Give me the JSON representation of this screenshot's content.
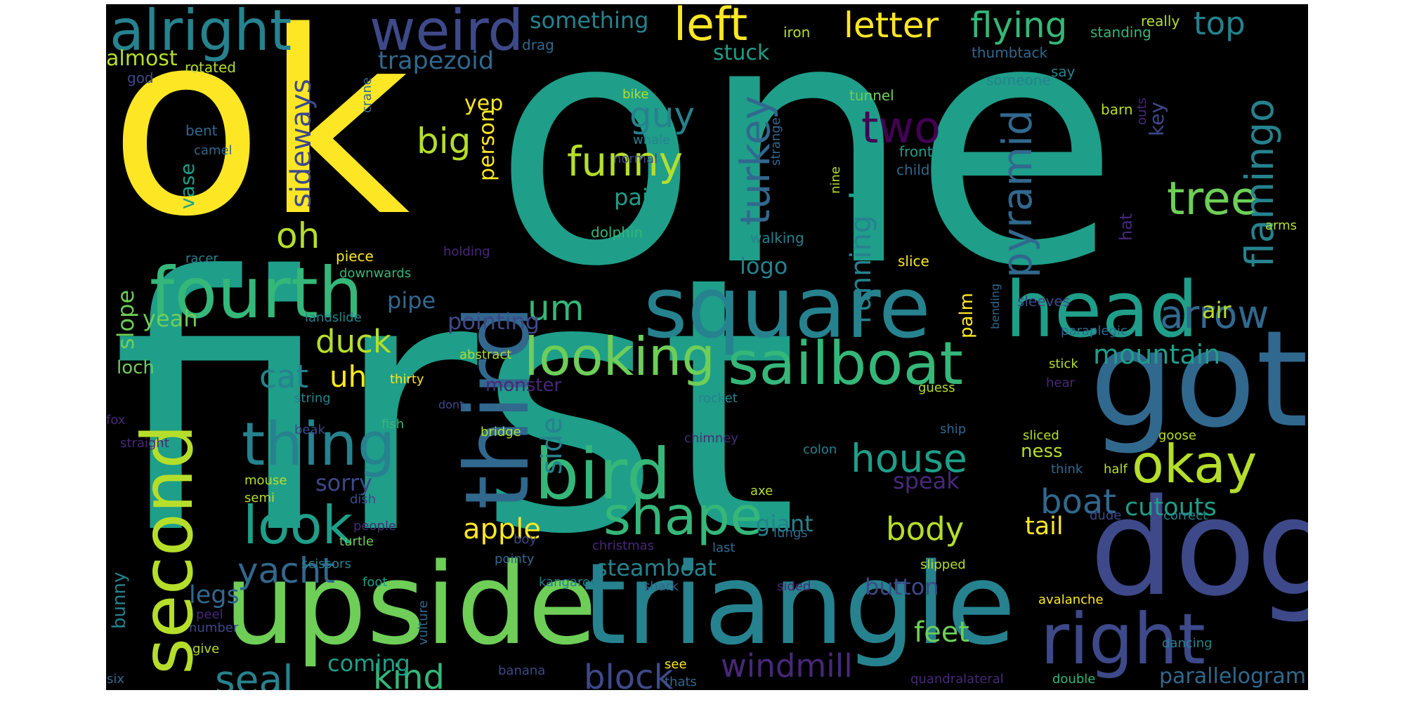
{
  "palette": [
    "#fde725",
    "#b5de2b",
    "#6ece58",
    "#35b779",
    "#1f9e89",
    "#26828e",
    "#31688e",
    "#3e4989",
    "#482878",
    "#440154"
  ],
  "words": [
    {
      "text": "first",
      "c": "#1f9e89"
    },
    {
      "text": "one",
      "c": "#1f9e89"
    },
    {
      "text": "ok",
      "c": "#fde725"
    },
    {
      "text": "upside",
      "c": "#6ece58"
    },
    {
      "text": "triangle",
      "c": "#26828e"
    },
    {
      "text": "got",
      "c": "#31688e"
    },
    {
      "text": "dog",
      "c": "#3e4989"
    },
    {
      "text": "square",
      "c": "#26828e"
    },
    {
      "text": "third",
      "c": "#31688e"
    },
    {
      "text": "head",
      "c": "#1f9e89"
    },
    {
      "text": "fourth",
      "c": "#35b779"
    },
    {
      "text": "second",
      "c": "#b5de2b"
    },
    {
      "text": "right",
      "c": "#3e4989"
    },
    {
      "text": "alright",
      "c": "#26828e"
    },
    {
      "text": "weird",
      "c": "#3e4989"
    },
    {
      "text": "bird",
      "c": "#35b779"
    },
    {
      "text": "thing",
      "c": "#26828e"
    },
    {
      "text": "sailboat",
      "c": "#35b779"
    },
    {
      "text": "looking",
      "c": "#6ece58"
    },
    {
      "text": "shape",
      "c": "#35b779"
    },
    {
      "text": "look",
      "c": "#1f9e89"
    },
    {
      "text": "okay",
      "c": "#b5de2b"
    },
    {
      "text": "tree",
      "c": "#6ece58"
    },
    {
      "text": "left",
      "c": "#fde725"
    },
    {
      "text": "letter",
      "c": "#fde725"
    },
    {
      "text": "flying",
      "c": "#35b779"
    },
    {
      "text": "top",
      "c": "#26828e"
    },
    {
      "text": "funny",
      "c": "#b5de2b"
    },
    {
      "text": "two",
      "c": "#440154"
    },
    {
      "text": "pyramid",
      "c": "#31688e"
    },
    {
      "text": "flamingo",
      "c": "#26828e"
    },
    {
      "text": "turkey",
      "c": "#31688e"
    },
    {
      "text": "house",
      "c": "#1f9e89"
    },
    {
      "text": "arrow",
      "c": "#31688e"
    },
    {
      "text": "cut",
      "c": "#1f9e89"
    },
    {
      "text": "running",
      "c": "#26828e"
    },
    {
      "text": "windmill",
      "c": "#482878"
    },
    {
      "text": "seal",
      "c": "#26828e"
    },
    {
      "text": "kind",
      "c": "#35b779"
    },
    {
      "text": "block",
      "c": "#3e4989"
    },
    {
      "text": "boat",
      "c": "#31688e"
    },
    {
      "text": "body",
      "c": "#b5de2b"
    },
    {
      "text": "yacht",
      "c": "#31688e"
    },
    {
      "text": "apple",
      "c": "#fde725"
    },
    {
      "text": "mountain",
      "c": "#1f9e89"
    },
    {
      "text": "cutouts",
      "c": "#1f9e89"
    },
    {
      "text": "sideways",
      "c": "#3e4989"
    },
    {
      "text": "guy",
      "c": "#26828e"
    },
    {
      "text": "big",
      "c": "#b5de2b"
    },
    {
      "text": "oh",
      "c": "#b5de2b"
    },
    {
      "text": "um",
      "c": "#35b779"
    },
    {
      "text": "duck",
      "c": "#b5de2b"
    },
    {
      "text": "cat",
      "c": "#26828e"
    },
    {
      "text": "uh",
      "c": "#fde725"
    },
    {
      "text": "side",
      "c": "#26828e"
    },
    {
      "text": "feet",
      "c": "#6ece58"
    },
    {
      "text": "legs",
      "c": "#31688e"
    },
    {
      "text": "steamboat",
      "c": "#26828e"
    },
    {
      "text": "parallelogram",
      "c": "#31688e"
    },
    {
      "text": "pair",
      "c": "#1f9e89"
    },
    {
      "text": "trapezoid",
      "c": "#31688e"
    },
    {
      "text": "something",
      "c": "#26828e"
    },
    {
      "text": "tail",
      "c": "#fde725"
    },
    {
      "text": "button",
      "c": "#3e4989"
    },
    {
      "text": "slope",
      "c": "#6ece58"
    },
    {
      "text": "sorry",
      "c": "#3e4989"
    },
    {
      "text": "giant",
      "c": "#26828e"
    },
    {
      "text": "coming",
      "c": "#1f9e89"
    },
    {
      "text": "logo",
      "c": "#26828e"
    },
    {
      "text": "pipe",
      "c": "#31688e"
    },
    {
      "text": "pointing",
      "c": "#3e4989"
    },
    {
      "text": "yeah",
      "c": "#6ece58"
    },
    {
      "text": "speak",
      "c": "#482878"
    },
    {
      "text": "air",
      "c": "#b5de2b"
    },
    {
      "text": "almost",
      "c": "#b5de2b"
    },
    {
      "text": "stuck",
      "c": "#1f9e89"
    },
    {
      "text": "person",
      "c": "#fde725"
    },
    {
      "text": "yep",
      "c": "#fde725"
    },
    {
      "text": "vase",
      "c": "#1f9e89"
    },
    {
      "text": "key",
      "c": "#3e4989"
    },
    {
      "text": "palm",
      "c": "#fde725"
    },
    {
      "text": "bunny",
      "c": "#26828e"
    },
    {
      "text": "loch",
      "c": "#6ece58"
    },
    {
      "text": "monster",
      "c": "#482878"
    },
    {
      "text": "ness",
      "c": "#b5de2b"
    },
    {
      "text": "hat",
      "c": "#482878"
    },
    {
      "text": "iron",
      "c": "#b5de2b"
    },
    {
      "text": "thumbtack",
      "c": "#31688e"
    },
    {
      "text": "rotated",
      "c": "#b5de2b"
    },
    {
      "text": "drag",
      "c": "#31688e"
    },
    {
      "text": "god",
      "c": "#3e4989"
    },
    {
      "text": "someone",
      "c": "#26828e"
    },
    {
      "text": "say",
      "c": "#26828e"
    },
    {
      "text": "standing",
      "c": "#35b779"
    },
    {
      "text": "really",
      "c": "#b5de2b"
    },
    {
      "text": "bike",
      "c": "#b5de2b"
    },
    {
      "text": "whale",
      "c": "#26828e"
    },
    {
      "text": "bent",
      "c": "#31688e"
    },
    {
      "text": "camel",
      "c": "#31688e"
    },
    {
      "text": "crane",
      "c": "#31688e"
    },
    {
      "text": "tunnel",
      "c": "#6ece58"
    },
    {
      "text": "barn",
      "c": "#b5de2b"
    },
    {
      "text": "outs",
      "c": "#482878"
    },
    {
      "text": "front",
      "c": "#1f9e89"
    },
    {
      "text": "child",
      "c": "#31688e"
    },
    {
      "text": "normal",
      "c": "#3e4989"
    },
    {
      "text": "strange",
      "c": "#31688e"
    },
    {
      "text": "nine",
      "c": "#b5de2b"
    },
    {
      "text": "dolphin",
      "c": "#35b779"
    },
    {
      "text": "walking",
      "c": "#26828e"
    },
    {
      "text": "arms",
      "c": "#b5de2b"
    },
    {
      "text": "racer",
      "c": "#26828e"
    },
    {
      "text": "piece",
      "c": "#fde725"
    },
    {
      "text": "holding",
      "c": "#482878"
    },
    {
      "text": "slice",
      "c": "#fde725"
    },
    {
      "text": "downwards",
      "c": "#35b779"
    },
    {
      "text": "bending",
      "c": "#31688e"
    },
    {
      "text": "sleeves",
      "c": "#3e4989"
    },
    {
      "text": "landslide",
      "c": "#26828e"
    },
    {
      "text": "paraplegic",
      "c": "#31688e"
    },
    {
      "text": "abstract",
      "c": "#b5de2b"
    },
    {
      "text": "thirty",
      "c": "#fde725"
    },
    {
      "text": "stick",
      "c": "#b5de2b"
    },
    {
      "text": "guess",
      "c": "#b5de2b"
    },
    {
      "text": "hear",
      "c": "#482878"
    },
    {
      "text": "string",
      "c": "#26828e"
    },
    {
      "text": "dont",
      "c": "#3e4989"
    },
    {
      "text": "rocket",
      "c": "#26828e"
    },
    {
      "text": "fox",
      "c": "#482878"
    },
    {
      "text": "beak",
      "c": "#3e4989"
    },
    {
      "text": "fish",
      "c": "#35b779"
    },
    {
      "text": "bridge",
      "c": "#b5de2b"
    },
    {
      "text": "chimney",
      "c": "#482878"
    },
    {
      "text": "ship",
      "c": "#31688e"
    },
    {
      "text": "straight",
      "c": "#482878"
    },
    {
      "text": "colon",
      "c": "#26828e"
    },
    {
      "text": "sliced",
      "c": "#b5de2b"
    },
    {
      "text": "goose",
      "c": "#b5de2b"
    },
    {
      "text": "think",
      "c": "#31688e"
    },
    {
      "text": "half",
      "c": "#b5de2b"
    },
    {
      "text": "mouse",
      "c": "#b5de2b"
    },
    {
      "text": "dish",
      "c": "#3e4989"
    },
    {
      "text": "semi",
      "c": "#b5de2b"
    },
    {
      "text": "axe",
      "c": "#b5de2b"
    },
    {
      "text": "lungs",
      "c": "#31688e"
    },
    {
      "text": "dude",
      "c": "#3e4989"
    },
    {
      "text": "correct",
      "c": "#26828e"
    },
    {
      "text": "people",
      "c": "#482878"
    },
    {
      "text": "turtle",
      "c": "#6ece58"
    },
    {
      "text": "boy",
      "c": "#3e4989"
    },
    {
      "text": "christmas",
      "c": "#482878"
    },
    {
      "text": "last",
      "c": "#31688e"
    },
    {
      "text": "scissors",
      "c": "#26828e"
    },
    {
      "text": "pointy",
      "c": "#31688e"
    },
    {
      "text": "slipped",
      "c": "#b5de2b"
    },
    {
      "text": "foot",
      "c": "#1f9e89"
    },
    {
      "text": "kangaroo",
      "c": "#26828e"
    },
    {
      "text": "sided",
      "c": "#482878"
    },
    {
      "text": "shark",
      "c": "#31688e"
    },
    {
      "text": "peel",
      "c": "#482878"
    },
    {
      "text": "vulture",
      "c": "#31688e"
    },
    {
      "text": "avalanche",
      "c": "#fde725"
    },
    {
      "text": "number",
      "c": "#3e4989"
    },
    {
      "text": "give",
      "c": "#b5de2b"
    },
    {
      "text": "dancing",
      "c": "#26828e"
    },
    {
      "text": "banana",
      "c": "#3e4989"
    },
    {
      "text": "see",
      "c": "#fde725"
    },
    {
      "text": "thats",
      "c": "#31688e"
    },
    {
      "text": "quandralateral",
      "c": "#482878"
    },
    {
      "text": "double",
      "c": "#35b779"
    },
    {
      "text": "six",
      "c": "#31688e"
    }
  ]
}
